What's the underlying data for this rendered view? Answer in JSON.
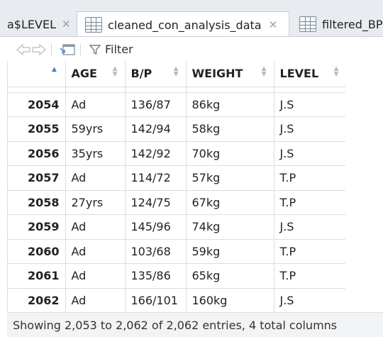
{
  "tabs": [
    {
      "label": "a$LEVEL",
      "active": false
    },
    {
      "label": "cleaned_con_analysis_data",
      "active": true
    },
    {
      "label": "filtered_BP",
      "active": false
    }
  ],
  "toolbar": {
    "filter_label": "Filter"
  },
  "table": {
    "columns": [
      "",
      "AGE",
      "B/P",
      "WEIGHT",
      "LEVEL"
    ],
    "rows": [
      {
        "idx": "2054",
        "age": "Ad",
        "bp": "136/87",
        "weight": "86kg",
        "level": "J.S"
      },
      {
        "idx": "2055",
        "age": "59yrs",
        "bp": "142/94",
        "weight": "58kg",
        "level": "J.S"
      },
      {
        "idx": "2056",
        "age": "35yrs",
        "bp": "142/92",
        "weight": "70kg",
        "level": "J.S"
      },
      {
        "idx": "2057",
        "age": "Ad",
        "bp": "114/72",
        "weight": "57kg",
        "level": "T.P"
      },
      {
        "idx": "2058",
        "age": "27yrs",
        "bp": "124/75",
        "weight": "67kg",
        "level": "T.P"
      },
      {
        "idx": "2059",
        "age": "Ad",
        "bp": "145/96",
        "weight": "74kg",
        "level": "J.S"
      },
      {
        "idx": "2060",
        "age": "Ad",
        "bp": "103/68",
        "weight": "59kg",
        "level": "T.P"
      },
      {
        "idx": "2061",
        "age": "Ad",
        "bp": "135/86",
        "weight": "65kg",
        "level": "T.P"
      },
      {
        "idx": "2062",
        "age": "Ad",
        "bp": "166/101",
        "weight": "160kg",
        "level": "J.S"
      }
    ]
  },
  "status": {
    "text": "Showing 2,053 to 2,062 of 2,062 entries, 4 total columns"
  },
  "colors": {
    "sort_active": "#3d82d6",
    "tab_bar_bg": "#e8ebef",
    "status_bg": "#f2f3f5"
  }
}
